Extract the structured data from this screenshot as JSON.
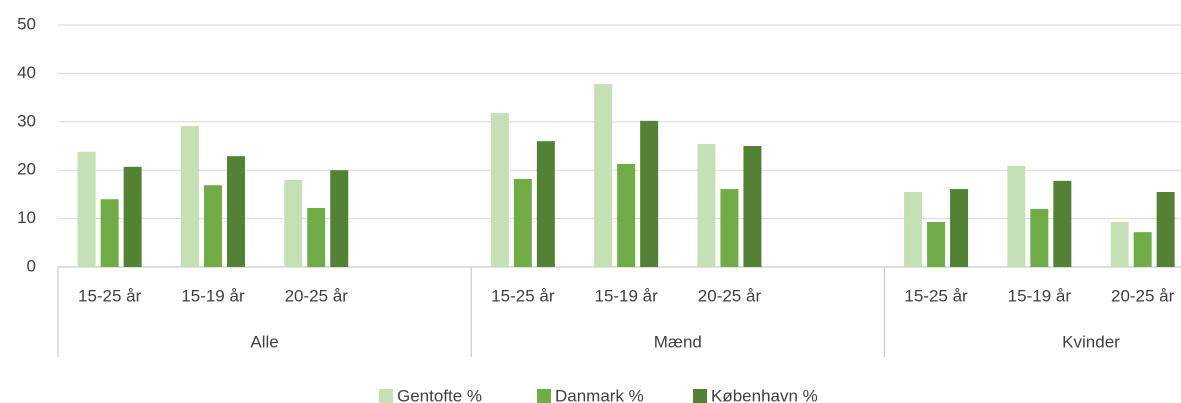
{
  "chart_data": {
    "type": "bar",
    "groups": [
      "Alle",
      "Mænd",
      "Kvinder"
    ],
    "categories": [
      "15-25 år",
      "15-19 år",
      "20-25 år",
      null,
      "15-25 år",
      "15-19 år",
      "20-25 år",
      null,
      "15-25 år",
      "15-19 år",
      "20-25 år",
      null
    ],
    "series": [
      {
        "name": "Gentofte %",
        "color": "#c5e0b4",
        "values": [
          23.8,
          29.1,
          18.0,
          null,
          31.8,
          37.8,
          25.4,
          null,
          15.5,
          20.9,
          9.3,
          null
        ]
      },
      {
        "name": "Danmark %",
        "color": "#70ad47",
        "values": [
          14.0,
          16.9,
          12.2,
          null,
          18.2,
          21.3,
          16.1,
          null,
          9.3,
          12.0,
          7.2,
          null
        ]
      },
      {
        "name": "København %",
        "color": "#548235",
        "values": [
          20.7,
          22.9,
          20.0,
          null,
          26.0,
          30.2,
          25.0,
          null,
          16.1,
          17.8,
          15.5,
          null
        ]
      }
    ],
    "ylim": [
      0,
      50
    ],
    "yticks": [
      0,
      10,
      20,
      30,
      40,
      50
    ],
    "grid": true,
    "legend": "bottom"
  }
}
